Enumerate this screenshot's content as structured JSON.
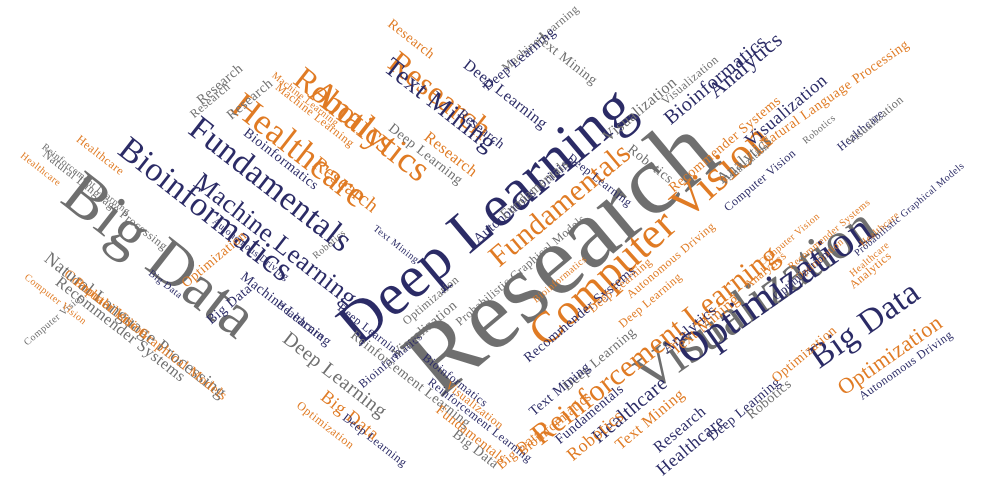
{
  "colors": {
    "gray": "#6f6f6f",
    "navy": "#2b2b66",
    "orange": "#e07b24",
    "background": "#ffffff"
  },
  "words": [
    {
      "text": "Research",
      "color": "gray"
    },
    {
      "text": "Deep Learning",
      "color": "navy"
    },
    {
      "text": "Big Data",
      "color": "gray"
    },
    {
      "text": "Visualization",
      "color": "gray"
    },
    {
      "text": "Optimization",
      "color": "navy"
    },
    {
      "text": "Computer Vision",
      "color": "orange"
    },
    {
      "text": "Big Data",
      "color": "navy"
    },
    {
      "text": "Reinforcement Learning",
      "color": "orange"
    },
    {
      "text": "Bioinformatics",
      "color": "navy"
    },
    {
      "text": "Fundamentals",
      "color": "navy"
    },
    {
      "text": "Healthcare",
      "color": "orange"
    },
    {
      "text": "Analytics",
      "color": "orange"
    },
    {
      "text": "Robotics",
      "color": "orange"
    },
    {
      "text": "Research",
      "color": "orange"
    },
    {
      "text": "Text Mining",
      "color": "navy"
    },
    {
      "text": "Fundamentals",
      "color": "orange"
    },
    {
      "text": "Machine Learning",
      "color": "navy"
    },
    {
      "text": "Fundamentals",
      "color": "navy"
    },
    {
      "text": "Research",
      "color": "orange"
    },
    {
      "text": "Natural Language Processing",
      "color": "gray"
    },
    {
      "text": "Recommender Systems",
      "color": "gray"
    },
    {
      "text": "Probabilistic Graphical Models",
      "color": "orange"
    },
    {
      "text": "Computer Vision",
      "color": "orange"
    },
    {
      "text": "Analytics",
      "color": "navy"
    },
    {
      "text": "Bioinformatics",
      "color": "navy"
    },
    {
      "text": "Visualization",
      "color": "gray"
    },
    {
      "text": "Optimization",
      "color": "orange"
    },
    {
      "text": "Autonomous Driving",
      "color": "navy"
    },
    {
      "text": "Deep Learning",
      "color": "navy"
    },
    {
      "text": "Robotics",
      "color": "gray"
    },
    {
      "text": "Research",
      "color": "navy"
    },
    {
      "text": "Healthcare",
      "color": "navy"
    },
    {
      "text": "Text Mining",
      "color": "orange"
    },
    {
      "text": "Robotics",
      "color": "orange"
    },
    {
      "text": "Bioinformatics",
      "color": "orange"
    },
    {
      "text": "Deep Learning",
      "color": "gray"
    },
    {
      "text": "Big Data",
      "color": "orange"
    },
    {
      "text": "Healthcare",
      "color": "navy"
    },
    {
      "text": "Machine Learning",
      "color": "navy"
    },
    {
      "text": "Autonomous Driving",
      "color": "navy"
    },
    {
      "text": "Text Mining",
      "color": "navy"
    },
    {
      "text": "Deep Learning",
      "color": "navy"
    },
    {
      "text": "Big Data",
      "color": "navy"
    },
    {
      "text": "Research",
      "color": "gray"
    },
    {
      "text": "Analytics",
      "color": "navy"
    },
    {
      "text": "Bioinformatics",
      "color": "navy"
    },
    {
      "text": "Visualization",
      "color": "gray"
    },
    {
      "text": "Healthcare",
      "color": "navy"
    },
    {
      "text": "Natural Language Processing",
      "color": "orange"
    },
    {
      "text": "Computer Vision",
      "color": "navy"
    },
    {
      "text": "Machine Learning",
      "color": "gray"
    },
    {
      "text": "Deep Learning",
      "color": "navy"
    },
    {
      "text": "Recommender Systems",
      "color": "navy"
    },
    {
      "text": "Analytics",
      "color": "gray"
    },
    {
      "text": "Research",
      "color": "gray"
    },
    {
      "text": "Robotics",
      "color": "gray"
    },
    {
      "text": "Research",
      "color": "orange"
    },
    {
      "text": "Healthcare",
      "color": "orange"
    },
    {
      "text": "Computer Vision",
      "color": "orange"
    },
    {
      "text": "Reinforcement Learning",
      "color": "gray"
    },
    {
      "text": "Optimization",
      "color": "orange"
    },
    {
      "text": "Visualization",
      "color": "gray"
    },
    {
      "text": "Probabilistic Graphical Models",
      "color": "navy"
    },
    {
      "text": "Big Data",
      "color": "navy"
    },
    {
      "text": "Optimization",
      "color": "gray"
    },
    {
      "text": "Bioinformatics",
      "color": "navy"
    },
    {
      "text": "Big Data",
      "color": "gray"
    },
    {
      "text": "Fundamentals",
      "color": "orange"
    },
    {
      "text": "Reinforcement Learning",
      "color": "navy"
    },
    {
      "text": "Visualization",
      "color": "orange"
    },
    {
      "text": "Machine Learning",
      "color": "orange"
    },
    {
      "text": "Healthcare",
      "color": "orange"
    },
    {
      "text": "Text Mining",
      "color": "gray"
    },
    {
      "text": "Deep Learning",
      "color": "navy"
    },
    {
      "text": "Autonomous Driving",
      "color": "navy"
    },
    {
      "text": "Natural Language Processing",
      "color": "gray"
    },
    {
      "text": "Optimization",
      "color": "navy"
    },
    {
      "text": "Analytics",
      "color": "orange"
    },
    {
      "text": "Robotics",
      "color": "gray"
    },
    {
      "text": "Optimization",
      "color": "orange"
    },
    {
      "text": "Healthcare",
      "color": "orange"
    },
    {
      "text": "Reinforcement Learning",
      "color": "gray"
    },
    {
      "text": "Research",
      "color": "gray"
    },
    {
      "text": "Machine Learning",
      "color": "orange"
    },
    {
      "text": "Visualization",
      "color": "navy"
    },
    {
      "text": "Probabilistic Graphical Models",
      "color": "gray"
    },
    {
      "text": "Bioinformatics",
      "color": "navy"
    },
    {
      "text": "Deep Learning",
      "color": "gray"
    },
    {
      "text": "Recommender Systems",
      "color": "orange"
    },
    {
      "text": "Robotics",
      "color": "gray"
    },
    {
      "text": "Deep Learning",
      "color": "navy"
    },
    {
      "text": "Analytics",
      "color": "orange"
    },
    {
      "text": "Optimization",
      "color": "orange"
    },
    {
      "text": "Fundamentals",
      "color": "gray"
    },
    {
      "text": "Visualization",
      "color": "gray"
    },
    {
      "text": "Computer Vision",
      "color": "gray"
    },
    {
      "text": "Text Mining",
      "color": "orange"
    },
    {
      "text": "Healthcare",
      "color": "navy"
    },
    {
      "text": "Big Data",
      "color": "orange"
    },
    {
      "text": "Deep Learning",
      "color": "gray"
    },
    {
      "text": "Research",
      "color": "navy"
    },
    {
      "text": "Visualization",
      "color": "gray"
    },
    {
      "text": "Healthcare",
      "color": "orange"
    },
    {
      "text": "Bioinformatics",
      "color": "orange"
    },
    {
      "text": "Deep Learning",
      "color": "orange"
    },
    {
      "text": "Research",
      "color": "orange"
    },
    {
      "text": "Deep Learning",
      "color": "navy"
    },
    {
      "text": "Text Mining",
      "color": "navy"
    },
    {
      "text": "Recommender Systems",
      "color": "orange"
    },
    {
      "text": "Deep Learning",
      "color": "orange"
    },
    {
      "text": "Autonomous Driving",
      "color": "orange"
    },
    {
      "text": "Computer Vision",
      "color": "orange"
    },
    {
      "text": "Optimization",
      "color": "orange"
    }
  ]
}
